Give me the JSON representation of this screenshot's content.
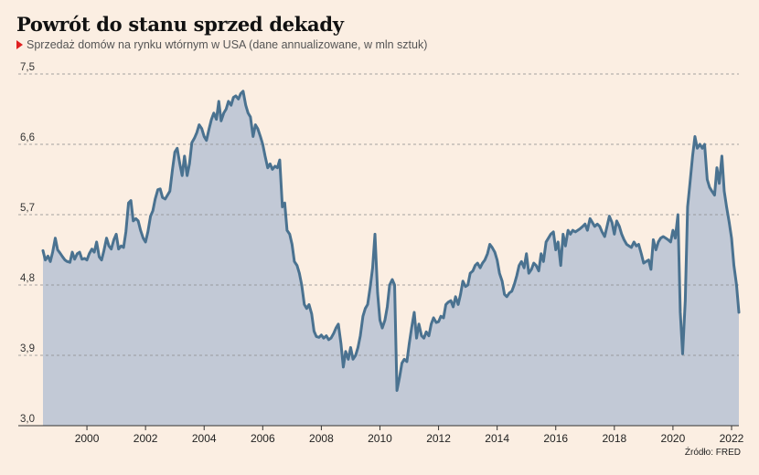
{
  "header": {
    "title": "Powrót do stanu sprzed dekady",
    "subtitle": "Sprzedaż domów na rynku wtórnym w USA (dane annualizowane, w mln sztuk)"
  },
  "footer": {
    "source": "Źródło: FRED"
  },
  "colors": {
    "background": "#fbeee2",
    "line": "#4a7290",
    "area": "#c2c9d6",
    "grid": "#8a8a8a",
    "accent": "#e02020"
  },
  "chart_data": {
    "type": "area",
    "title": "Powrót do stanu sprzed dekady",
    "subtitle": "Sprzedaż domów na rynku wtórnym w USA (dane annualizowane, w mln sztuk)",
    "xlabel": "",
    "ylabel": "",
    "ylim": [
      3.0,
      7.5
    ],
    "xlim": [
      1999.0,
      2022.75
    ],
    "yticks": [
      "7,5",
      "6,6",
      "5,7",
      "4,8",
      "3,9",
      "3,0"
    ],
    "xticks": [
      "2000",
      "2002",
      "2004",
      "2006",
      "2008",
      "2010",
      "2012",
      "2014",
      "2016",
      "2018",
      "2020",
      "2022"
    ],
    "grid": "horizontal dashed",
    "series": [
      {
        "points": [
          [
            1999.0,
            5.24
          ],
          [
            1999.08,
            5.12
          ],
          [
            1999.17,
            5.17
          ],
          [
            1999.25,
            5.1
          ],
          [
            1999.33,
            5.22
          ],
          [
            1999.42,
            5.4
          ],
          [
            1999.5,
            5.25
          ],
          [
            1999.58,
            5.21
          ],
          [
            1999.67,
            5.16
          ],
          [
            1999.75,
            5.12
          ],
          [
            1999.83,
            5.1
          ],
          [
            1999.92,
            5.09
          ],
          [
            2000.0,
            5.22
          ],
          [
            2000.08,
            5.13
          ],
          [
            2000.17,
            5.2
          ],
          [
            2000.25,
            5.22
          ],
          [
            2000.33,
            5.13
          ],
          [
            2000.42,
            5.14
          ],
          [
            2000.5,
            5.12
          ],
          [
            2000.58,
            5.2
          ],
          [
            2000.67,
            5.26
          ],
          [
            2000.75,
            5.22
          ],
          [
            2000.83,
            5.35
          ],
          [
            2000.92,
            5.16
          ],
          [
            2001.0,
            5.12
          ],
          [
            2001.08,
            5.24
          ],
          [
            2001.17,
            5.4
          ],
          [
            2001.25,
            5.3
          ],
          [
            2001.33,
            5.26
          ],
          [
            2001.42,
            5.38
          ],
          [
            2001.5,
            5.45
          ],
          [
            2001.58,
            5.26
          ],
          [
            2001.67,
            5.3
          ],
          [
            2001.75,
            5.28
          ],
          [
            2001.83,
            5.48
          ],
          [
            2001.92,
            5.85
          ],
          [
            2002.0,
            5.88
          ],
          [
            2002.08,
            5.62
          ],
          [
            2002.17,
            5.65
          ],
          [
            2002.25,
            5.62
          ],
          [
            2002.33,
            5.5
          ],
          [
            2002.42,
            5.4
          ],
          [
            2002.5,
            5.35
          ],
          [
            2002.58,
            5.48
          ],
          [
            2002.67,
            5.68
          ],
          [
            2002.75,
            5.75
          ],
          [
            2002.83,
            5.9
          ],
          [
            2002.92,
            6.02
          ],
          [
            2003.0,
            6.03
          ],
          [
            2003.08,
            5.92
          ],
          [
            2003.17,
            5.9
          ],
          [
            2003.25,
            5.95
          ],
          [
            2003.33,
            6.0
          ],
          [
            2003.42,
            6.28
          ],
          [
            2003.5,
            6.5
          ],
          [
            2003.58,
            6.55
          ],
          [
            2003.67,
            6.35
          ],
          [
            2003.75,
            6.2
          ],
          [
            2003.83,
            6.45
          ],
          [
            2003.92,
            6.2
          ],
          [
            2004.0,
            6.35
          ],
          [
            2004.08,
            6.62
          ],
          [
            2004.17,
            6.68
          ],
          [
            2004.25,
            6.75
          ],
          [
            2004.33,
            6.85
          ],
          [
            2004.42,
            6.8
          ],
          [
            2004.5,
            6.7
          ],
          [
            2004.58,
            6.65
          ],
          [
            2004.67,
            6.8
          ],
          [
            2004.75,
            6.92
          ],
          [
            2004.83,
            7.0
          ],
          [
            2004.92,
            6.92
          ],
          [
            2005.0,
            7.15
          ],
          [
            2005.08,
            6.9
          ],
          [
            2005.17,
            7.0
          ],
          [
            2005.25,
            7.05
          ],
          [
            2005.33,
            7.15
          ],
          [
            2005.42,
            7.1
          ],
          [
            2005.5,
            7.2
          ],
          [
            2005.58,
            7.22
          ],
          [
            2005.67,
            7.18
          ],
          [
            2005.75,
            7.25
          ],
          [
            2005.83,
            7.28
          ],
          [
            2005.92,
            7.1
          ],
          [
            2006.0,
            7.0
          ],
          [
            2006.08,
            6.95
          ],
          [
            2006.17,
            6.7
          ],
          [
            2006.25,
            6.85
          ],
          [
            2006.33,
            6.8
          ],
          [
            2006.42,
            6.7
          ],
          [
            2006.5,
            6.6
          ],
          [
            2006.58,
            6.45
          ],
          [
            2006.67,
            6.3
          ],
          [
            2006.75,
            6.35
          ],
          [
            2006.83,
            6.28
          ],
          [
            2006.92,
            6.32
          ],
          [
            2007.0,
            6.3
          ],
          [
            2007.08,
            6.4
          ],
          [
            2007.17,
            5.8
          ],
          [
            2007.25,
            5.85
          ],
          [
            2007.33,
            5.5
          ],
          [
            2007.42,
            5.45
          ],
          [
            2007.5,
            5.32
          ],
          [
            2007.58,
            5.1
          ],
          [
            2007.67,
            5.05
          ],
          [
            2007.75,
            4.95
          ],
          [
            2007.83,
            4.8
          ],
          [
            2007.92,
            4.55
          ],
          [
            2008.0,
            4.5
          ],
          [
            2008.08,
            4.55
          ],
          [
            2008.17,
            4.43
          ],
          [
            2008.25,
            4.21
          ],
          [
            2008.33,
            4.14
          ],
          [
            2008.42,
            4.13
          ],
          [
            2008.5,
            4.16
          ],
          [
            2008.58,
            4.12
          ],
          [
            2008.67,
            4.15
          ],
          [
            2008.75,
            4.1
          ],
          [
            2008.83,
            4.12
          ],
          [
            2008.92,
            4.18
          ],
          [
            2009.0,
            4.25
          ],
          [
            2009.08,
            4.3
          ],
          [
            2009.17,
            4.05
          ],
          [
            2009.25,
            3.75
          ],
          [
            2009.33,
            3.95
          ],
          [
            2009.42,
            3.85
          ],
          [
            2009.5,
            4.0
          ],
          [
            2009.58,
            3.85
          ],
          [
            2009.67,
            3.9
          ],
          [
            2009.75,
            4.0
          ],
          [
            2009.83,
            4.15
          ],
          [
            2009.92,
            4.4
          ],
          [
            2010.0,
            4.5
          ],
          [
            2010.08,
            4.55
          ],
          [
            2010.17,
            4.78
          ],
          [
            2010.25,
            5.02
          ],
          [
            2010.33,
            5.45
          ],
          [
            2010.42,
            4.7
          ],
          [
            2010.5,
            4.35
          ],
          [
            2010.58,
            4.25
          ],
          [
            2010.67,
            4.35
          ],
          [
            2010.75,
            4.52
          ],
          [
            2010.83,
            4.8
          ],
          [
            2010.92,
            4.87
          ],
          [
            2011.0,
            4.8
          ],
          [
            2011.08,
            3.45
          ],
          [
            2011.17,
            3.62
          ],
          [
            2011.25,
            3.8
          ],
          [
            2011.33,
            3.85
          ],
          [
            2011.42,
            3.82
          ],
          [
            2011.5,
            4.05
          ],
          [
            2011.58,
            4.25
          ],
          [
            2011.67,
            4.45
          ],
          [
            2011.75,
            4.12
          ],
          [
            2011.83,
            4.3
          ],
          [
            2011.92,
            4.15
          ],
          [
            2012.0,
            4.12
          ],
          [
            2012.08,
            4.2
          ],
          [
            2012.17,
            4.15
          ],
          [
            2012.25,
            4.3
          ],
          [
            2012.33,
            4.38
          ],
          [
            2012.42,
            4.32
          ],
          [
            2012.5,
            4.33
          ],
          [
            2012.58,
            4.4
          ],
          [
            2012.67,
            4.38
          ],
          [
            2012.75,
            4.55
          ],
          [
            2012.83,
            4.58
          ],
          [
            2012.92,
            4.6
          ],
          [
            2013.0,
            4.52
          ],
          [
            2013.08,
            4.65
          ],
          [
            2013.17,
            4.55
          ],
          [
            2013.25,
            4.68
          ],
          [
            2013.33,
            4.85
          ],
          [
            2013.42,
            4.78
          ],
          [
            2013.5,
            4.8
          ],
          [
            2013.58,
            4.95
          ],
          [
            2013.67,
            4.98
          ],
          [
            2013.75,
            5.05
          ],
          [
            2013.83,
            5.08
          ],
          [
            2013.92,
            5.02
          ],
          [
            2014.0,
            5.08
          ],
          [
            2014.08,
            5.12
          ],
          [
            2014.17,
            5.2
          ],
          [
            2014.25,
            5.32
          ],
          [
            2014.33,
            5.28
          ],
          [
            2014.42,
            5.22
          ],
          [
            2014.5,
            5.12
          ],
          [
            2014.58,
            4.95
          ],
          [
            2014.67,
            4.85
          ],
          [
            2014.75,
            4.68
          ],
          [
            2014.83,
            4.65
          ],
          [
            2014.92,
            4.7
          ],
          [
            2015.0,
            4.72
          ],
          [
            2015.08,
            4.8
          ],
          [
            2015.17,
            4.92
          ],
          [
            2015.25,
            5.05
          ],
          [
            2015.33,
            5.1
          ],
          [
            2015.42,
            5.02
          ],
          [
            2015.5,
            5.2
          ],
          [
            2015.58,
            4.95
          ],
          [
            2015.67,
            5.0
          ],
          [
            2015.75,
            5.08
          ],
          [
            2015.83,
            5.05
          ],
          [
            2015.92,
            4.98
          ],
          [
            2016.0,
            5.2
          ],
          [
            2016.08,
            5.1
          ],
          [
            2016.17,
            5.35
          ],
          [
            2016.25,
            5.4
          ],
          [
            2016.33,
            5.45
          ],
          [
            2016.42,
            5.48
          ],
          [
            2016.5,
            5.25
          ],
          [
            2016.58,
            5.35
          ],
          [
            2016.67,
            5.05
          ],
          [
            2016.75,
            5.45
          ],
          [
            2016.83,
            5.3
          ],
          [
            2016.92,
            5.5
          ],
          [
            2017.0,
            5.45
          ],
          [
            2017.08,
            5.5
          ],
          [
            2017.17,
            5.48
          ],
          [
            2017.25,
            5.5
          ],
          [
            2017.33,
            5.52
          ],
          [
            2017.42,
            5.55
          ],
          [
            2017.5,
            5.58
          ],
          [
            2017.58,
            5.5
          ],
          [
            2017.67,
            5.65
          ],
          [
            2017.75,
            5.6
          ],
          [
            2017.83,
            5.55
          ],
          [
            2017.92,
            5.58
          ],
          [
            2018.0,
            5.55
          ],
          [
            2018.08,
            5.48
          ],
          [
            2018.17,
            5.42
          ],
          [
            2018.25,
            5.55
          ],
          [
            2018.33,
            5.68
          ],
          [
            2018.42,
            5.6
          ],
          [
            2018.5,
            5.45
          ],
          [
            2018.58,
            5.62
          ],
          [
            2018.67,
            5.55
          ],
          [
            2018.75,
            5.45
          ],
          [
            2018.83,
            5.38
          ],
          [
            2018.92,
            5.32
          ],
          [
            2019.0,
            5.3
          ],
          [
            2019.08,
            5.28
          ],
          [
            2019.17,
            5.35
          ],
          [
            2019.25,
            5.3
          ],
          [
            2019.33,
            5.32
          ],
          [
            2019.42,
            5.2
          ],
          [
            2019.5,
            5.08
          ],
          [
            2019.58,
            5.1
          ],
          [
            2019.67,
            5.12
          ],
          [
            2019.75,
            5.0
          ],
          [
            2019.83,
            5.38
          ],
          [
            2019.92,
            5.25
          ],
          [
            2020.0,
            5.35
          ],
          [
            2020.08,
            5.4
          ],
          [
            2020.17,
            5.42
          ],
          [
            2020.25,
            5.4
          ],
          [
            2020.33,
            5.38
          ],
          [
            2020.42,
            5.35
          ],
          [
            2020.5,
            5.5
          ],
          [
            2020.58,
            5.4
          ],
          [
            2020.67,
            5.7
          ],
          [
            2020.75,
            4.45
          ],
          [
            2020.83,
            3.92
          ],
          [
            2020.92,
            4.6
          ],
          [
            2021.0,
            5.8
          ],
          [
            2021.08,
            6.1
          ],
          [
            2021.17,
            6.45
          ],
          [
            2021.25,
            6.7
          ],
          [
            2021.33,
            6.55
          ],
          [
            2021.42,
            6.6
          ],
          [
            2021.5,
            6.55
          ],
          [
            2021.58,
            6.6
          ],
          [
            2021.67,
            6.15
          ],
          [
            2021.75,
            6.05
          ],
          [
            2021.83,
            6.0
          ],
          [
            2021.92,
            5.95
          ],
          [
            2022.0,
            6.3
          ],
          [
            2022.08,
            6.1
          ],
          [
            2022.17,
            6.45
          ],
          [
            2022.25,
            6.0
          ],
          [
            2022.33,
            5.8
          ],
          [
            2022.42,
            5.6
          ],
          [
            2022.5,
            5.4
          ],
          [
            2022.58,
            5.05
          ],
          [
            2022.67,
            4.8
          ],
          [
            2022.75,
            4.45
          ]
        ]
      }
    ]
  }
}
